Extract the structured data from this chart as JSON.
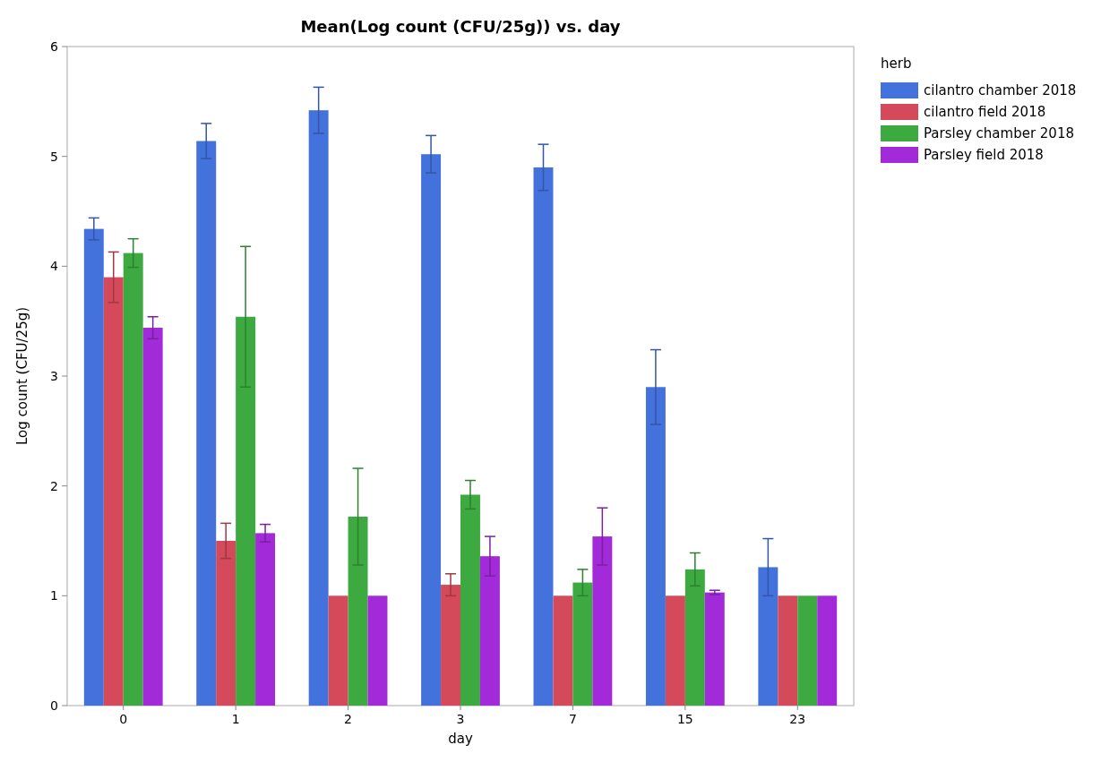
{
  "chart_data": {
    "type": "bar",
    "title": "Mean(Log count (CFU/25g)) vs. day",
    "xlabel": "day",
    "ylabel": "Log count (CFU/25g)",
    "legend_title": "herb",
    "legend": "top right",
    "categories": [
      "0",
      "1",
      "2",
      "3",
      "7",
      "15",
      "23"
    ],
    "ylim": [
      0,
      6
    ],
    "yticks": [
      0,
      1,
      2,
      3,
      4,
      5,
      6
    ],
    "series": [
      {
        "name": "cilantro chamber 2018",
        "color": "#4472dc",
        "values": [
          4.34,
          5.14,
          5.42,
          5.02,
          4.9,
          2.9,
          1.26
        ],
        "errors": [
          0.1,
          0.16,
          0.21,
          0.17,
          0.21,
          0.34,
          0.26
        ]
      },
      {
        "name": "cilantro field 2018",
        "color": "#d44a5a",
        "values": [
          3.9,
          1.5,
          1.0,
          1.1,
          1.0,
          1.0,
          1.0
        ],
        "errors": [
          0.23,
          0.16,
          null,
          0.1,
          null,
          null,
          null
        ]
      },
      {
        "name": "Parsley chamber 2018",
        "color": "#3caa40",
        "values": [
          4.12,
          3.54,
          1.72,
          1.92,
          1.12,
          1.24,
          1.0
        ],
        "errors": [
          0.13,
          0.64,
          0.44,
          0.13,
          0.12,
          0.15,
          null
        ]
      },
      {
        "name": "Parsley field 2018",
        "color": "#a22ad8",
        "values": [
          3.44,
          1.57,
          1.0,
          1.36,
          1.54,
          1.03,
          1.0
        ],
        "errors": [
          0.1,
          0.08,
          null,
          0.18,
          0.26,
          0.02,
          null
        ]
      }
    ]
  }
}
